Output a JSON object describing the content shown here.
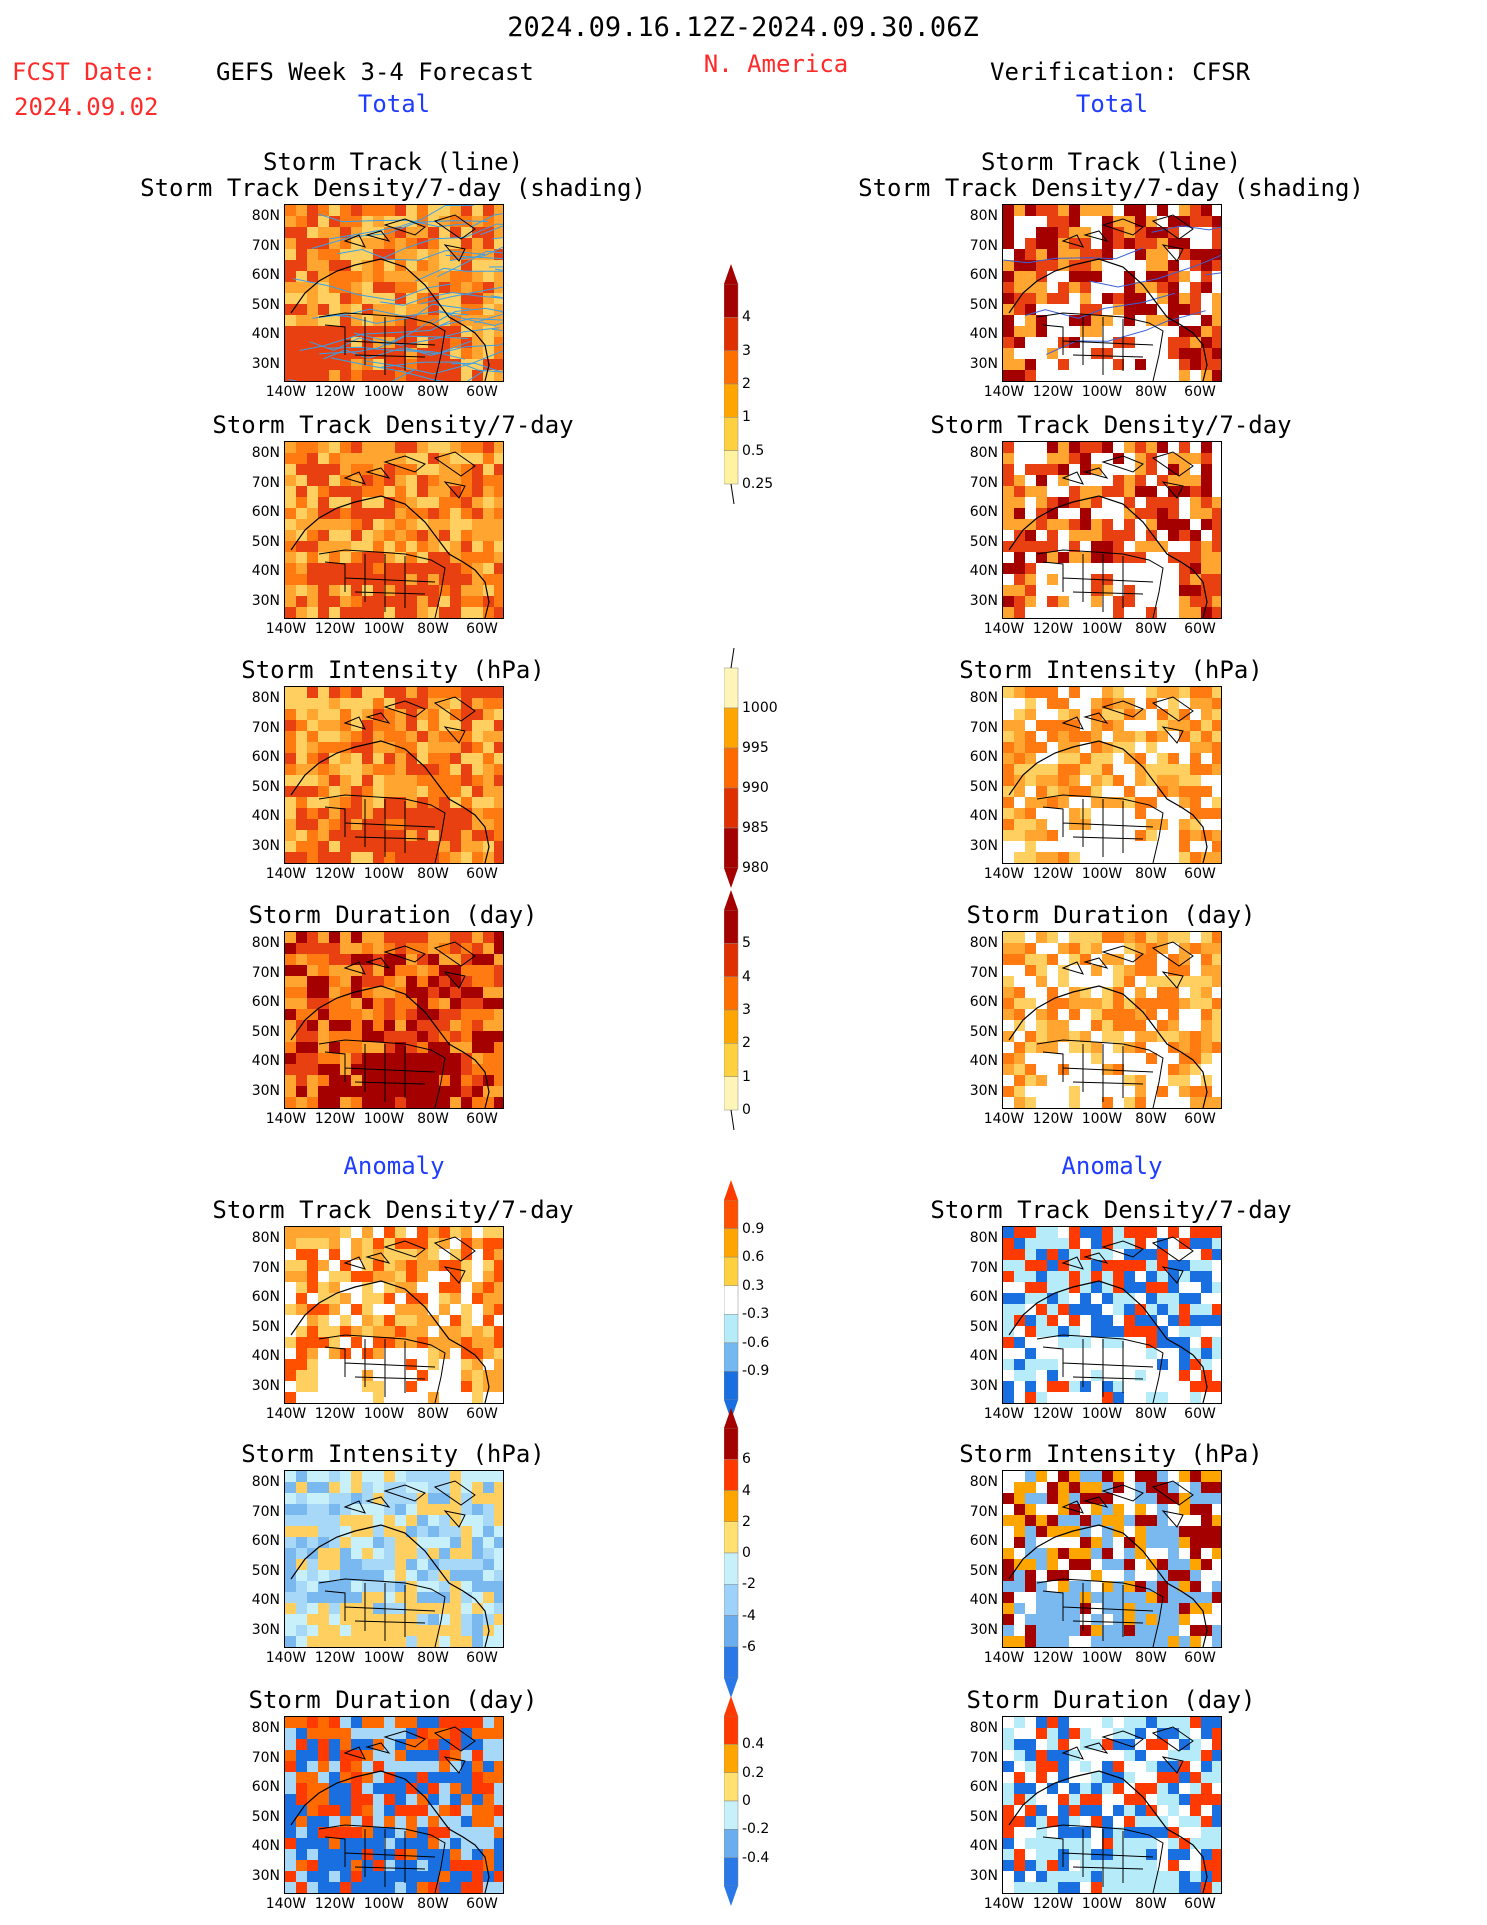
{
  "header": {
    "period": "2024.09.16.12Z-2024.09.30.06Z",
    "fcst_label": "FCST Date:",
    "fcst_date": "2024.09.02",
    "forecast_title": "GEFS Week 3-4 Forecast",
    "region": "N. America",
    "verification_title": "Verification: CFSR"
  },
  "sections": {
    "total": "Total",
    "anomaly": "Anomaly"
  },
  "panel_titles": {
    "track1": "Storm Track (line)",
    "track2": "Storm Track Density/7-day (shading)",
    "density": "Storm Track Density/7-day",
    "intensity": "Storm Intensity (hPa)",
    "duration": "Storm Duration (day)"
  },
  "axes": {
    "lat_ticks": [
      "80N",
      "70N",
      "60N",
      "50N",
      "40N",
      "30N"
    ],
    "lon_ticks": [
      "140W",
      "120W",
      "100W",
      "80W",
      "60W"
    ]
  },
  "colorbars": [
    {
      "labels": [
        "4",
        "3",
        "2",
        "1",
        "0.5",
        "0.25"
      ],
      "colors": [
        "#a50000",
        "#e03000",
        "#ff6f00",
        "#ffa500",
        "#ffd040",
        "#fff2a0"
      ],
      "tip_top": "#a50000",
      "tip_bottom": "none"
    },
    {
      "labels": [
        "1000",
        "995",
        "990",
        "985",
        "980"
      ],
      "colors": [
        "#fff5b8",
        "#ffa500",
        "#ff6a00",
        "#e03000",
        "#a50000"
      ],
      "tip_top": "none",
      "tip_bottom": "#a50000"
    },
    {
      "labels": [
        "5",
        "4",
        "3",
        "2",
        "1",
        "0"
      ],
      "colors": [
        "#a50000",
        "#e03000",
        "#ff6f00",
        "#ffa500",
        "#ffd040",
        "#fff5b8"
      ],
      "tip_top": "#a50000",
      "tip_bottom": "none"
    },
    {
      "labels": [
        "0.9",
        "0.6",
        "0.3",
        "-0.3",
        "-0.6",
        "-0.9"
      ],
      "colors": [
        "#ff5000",
        "#ffa500",
        "#ffd040",
        "#ffffff",
        "#b6ecfa",
        "#74b8f2",
        "#1a6fe0"
      ],
      "tip_top": "#ff3a00",
      "tip_bottom": "#1a6fe0"
    },
    {
      "labels": [
        "6",
        "4",
        "2",
        "0",
        "-2",
        "-4",
        "-6"
      ],
      "colors": [
        "#a50000",
        "#ff3a00",
        "#ffa500",
        "#ffe070",
        "#c8f0fa",
        "#9ed2fa",
        "#6aaef0",
        "#2a78e8"
      ],
      "tip_top": "#a50000",
      "tip_bottom": "#2a78e8"
    },
    {
      "labels": [
        "0.4",
        "0.2",
        "0",
        "-0.2",
        "-0.4"
      ],
      "colors": [
        "#ff3a00",
        "#ffa500",
        "#ffe070",
        "#c8f0fa",
        "#6aaef0",
        "#2a78e8"
      ],
      "tip_top": "#ff3a00",
      "tip_bottom": "#2a78e8"
    }
  ]
}
